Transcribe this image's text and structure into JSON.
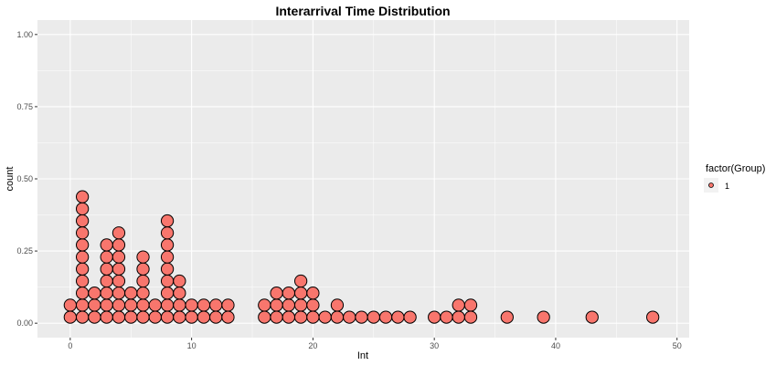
{
  "chart_data": {
    "type": "dotplot",
    "title": "Interarrival Time Distribution",
    "xlabel": "Int",
    "ylabel": "count",
    "xlim": [
      -2.7,
      51
    ],
    "ylim": [
      -0.05,
      1.05
    ],
    "x_ticks": [
      0,
      10,
      20,
      30,
      40,
      50
    ],
    "y_ticks": [
      0.0,
      0.25,
      0.5,
      0.75,
      1.0
    ],
    "y_tick_labels": [
      "0.00",
      "0.25",
      "0.50",
      "0.75",
      "1.00"
    ],
    "grid": true,
    "legend": {
      "title": "factor(Group)",
      "entries": [
        "1"
      ],
      "placement": "right"
    },
    "colors": {
      "fill": "#F8766D",
      "stroke": "#000000",
      "panel": "#EBEBEB",
      "grid": "#FFFFFF"
    },
    "stack_step": 0.0417,
    "columns": [
      {
        "x": 0,
        "n": 2
      },
      {
        "x": 1,
        "n": 11
      },
      {
        "x": 2,
        "n": 3
      },
      {
        "x": 3,
        "n": 7
      },
      {
        "x": 4,
        "n": 8
      },
      {
        "x": 5,
        "n": 3
      },
      {
        "x": 6,
        "n": 6
      },
      {
        "x": 7,
        "n": 2
      },
      {
        "x": 8,
        "n": 9
      },
      {
        "x": 9,
        "n": 4
      },
      {
        "x": 10,
        "n": 2
      },
      {
        "x": 11,
        "n": 2
      },
      {
        "x": 12,
        "n": 2
      },
      {
        "x": 13,
        "n": 2
      },
      {
        "x": 16,
        "n": 2
      },
      {
        "x": 17,
        "n": 3
      },
      {
        "x": 18,
        "n": 3
      },
      {
        "x": 19,
        "n": 4
      },
      {
        "x": 20,
        "n": 3
      },
      {
        "x": 21,
        "n": 1
      },
      {
        "x": 22,
        "n": 2
      },
      {
        "x": 23,
        "n": 1
      },
      {
        "x": 24,
        "n": 1
      },
      {
        "x": 25,
        "n": 1
      },
      {
        "x": 26,
        "n": 1
      },
      {
        "x": 27,
        "n": 1
      },
      {
        "x": 28,
        "n": 1
      },
      {
        "x": 30,
        "n": 1
      },
      {
        "x": 31,
        "n": 1
      },
      {
        "x": 32,
        "n": 2
      },
      {
        "x": 33,
        "n": 2
      },
      {
        "x": 36,
        "n": 1
      },
      {
        "x": 39,
        "n": 1
      },
      {
        "x": 43,
        "n": 1
      },
      {
        "x": 48,
        "n": 1
      }
    ]
  }
}
